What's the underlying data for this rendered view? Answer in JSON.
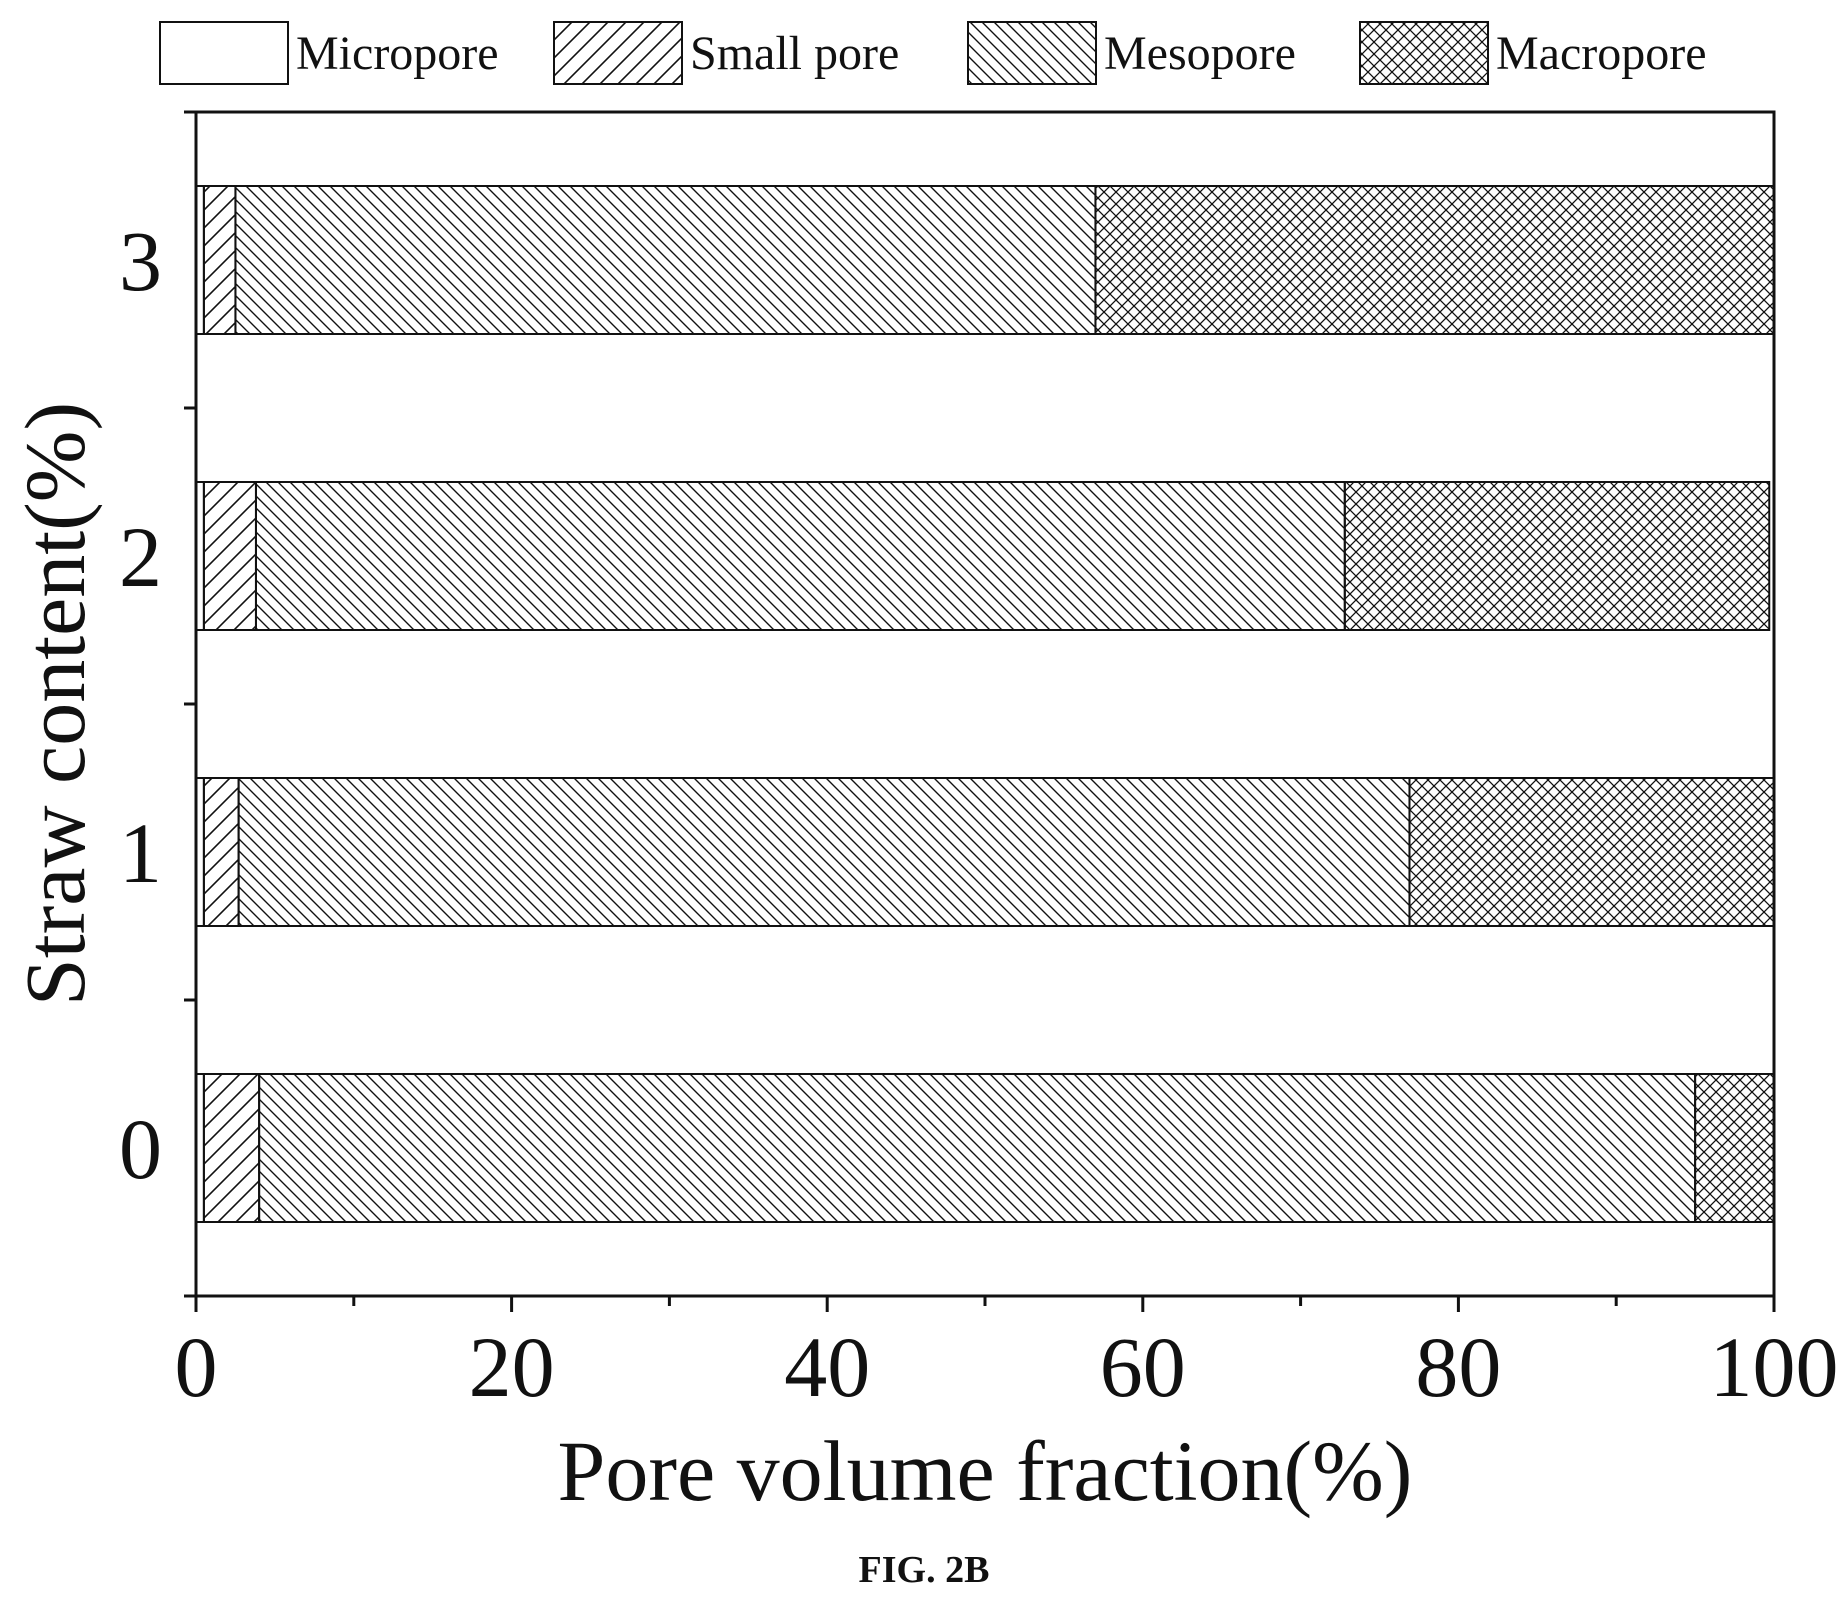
{
  "chart_data": {
    "type": "bar",
    "orientation": "horizontal",
    "stacked": true,
    "categories": [
      "0",
      "1",
      "2",
      "3"
    ],
    "series": [
      {
        "name": "Micropore",
        "values": [
          0.5,
          0.5,
          0.5,
          0.5
        ],
        "pattern": "none"
      },
      {
        "name": "Small pore",
        "values": [
          3.5,
          2.2,
          3.3,
          2.0
        ],
        "pattern": "forward-diagonal"
      },
      {
        "name": "Mesopore",
        "values": [
          91.0,
          74.2,
          69.0,
          54.5
        ],
        "pattern": "back-diagonal"
      },
      {
        "name": "Macropore",
        "values": [
          5.0,
          23.1,
          26.9,
          43.0
        ],
        "pattern": "crosshatch"
      }
    ],
    "xlabel": "Pore volume fraction(%)",
    "ylabel": "Straw content(%)",
    "xlim": [
      0,
      100
    ],
    "x_ticks": [
      "0",
      "20",
      "40",
      "60",
      "80",
      "100"
    ],
    "legend_position": "top",
    "grid": false
  },
  "caption": "FIG. 2B",
  "colors": {
    "ink": "#111111",
    "background": "#ffffff"
  }
}
